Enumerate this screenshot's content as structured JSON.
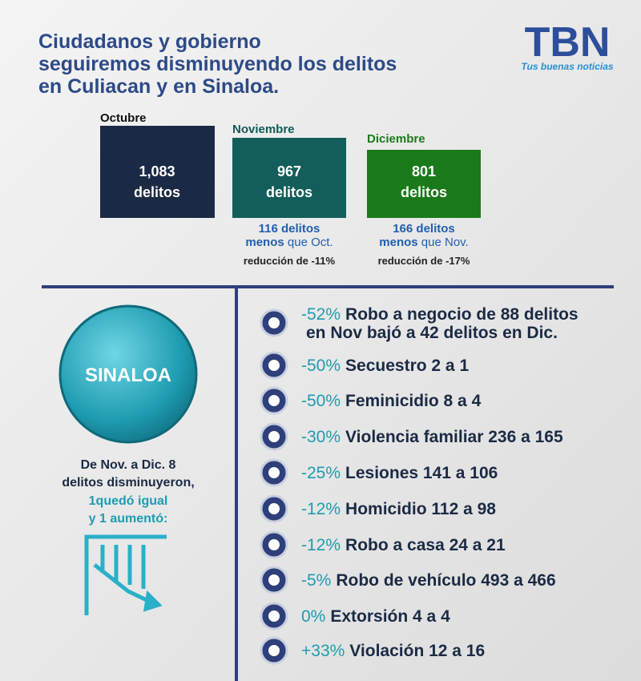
{
  "header": {
    "title_lines": [
      "Ciudadanos y gobierno",
      "seguiremos disminuyendo los delitos",
      "en Culiacan y en Sinaloa."
    ]
  },
  "logo": {
    "name": "TBN",
    "tagline": "Tus buenas noticias"
  },
  "months": [
    {
      "label": "Octubre",
      "value": "1,083",
      "unit": "delitos"
    },
    {
      "label": "Noviembre",
      "value": "967",
      "unit": "delitos",
      "diff": "116 delitos",
      "less": "menos",
      "than": "que Oct.",
      "reduction": "reducción de -11%"
    },
    {
      "label": "Diciembre",
      "value": "801",
      "unit": "delitos",
      "diff": "166 delitos",
      "less": "menos",
      "than": "que Nov.",
      "reduction": "reducción de -17%"
    }
  ],
  "sinaloa": {
    "badge": "SINALOA",
    "lines": [
      "De Nov. a Dic. 8",
      "delitos disminuyeron,",
      "1quedó igual",
      "y 1 aumentó:"
    ]
  },
  "items": [
    {
      "pct": "-52%",
      "lines": [
        "Robo a negocio de 88 delitos",
        "en Nov bajó a 42 delitos en Dic."
      ]
    },
    {
      "pct": "-50%",
      "lines": [
        "Secuestro 2 a 1"
      ]
    },
    {
      "pct": "-50%",
      "lines": [
        "Feminicidio 8 a 4"
      ]
    },
    {
      "pct": "-30%",
      "lines": [
        "Violencia familiar 236 a 165"
      ]
    },
    {
      "pct": "-25%",
      "lines": [
        "Lesiones 141 a 106"
      ]
    },
    {
      "pct": "-12%",
      "lines": [
        "Homicidio 112 a 98"
      ]
    },
    {
      "pct": "-12%",
      "lines": [
        "Robo a casa 24 a 21"
      ]
    },
    {
      "pct": "-5%",
      "lines": [
        "Robo de vehículo 493 a 466"
      ]
    },
    {
      "pct": "0%",
      "lines": [
        "Extorsión 4 a 4"
      ]
    },
    {
      "pct": "+33%",
      "lines": [
        "Violación 12 a 16"
      ]
    }
  ]
}
